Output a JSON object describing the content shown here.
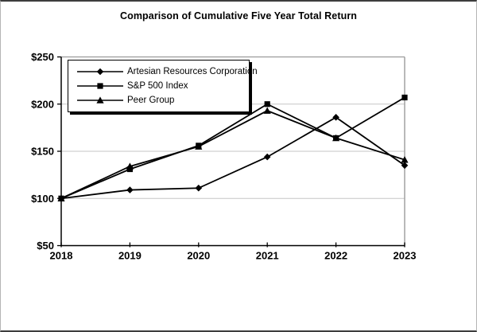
{
  "chart_data": {
    "type": "line",
    "title": "Comparison of Cumulative Five Year Total Return",
    "categories": [
      "2018",
      "2019",
      "2020",
      "2021",
      "2022",
      "2023"
    ],
    "series": [
      {
        "name": "Artesian Resources Corporation",
        "marker": "diamond",
        "color": "#000000",
        "values": [
          100,
          109,
          111,
          144,
          186,
          135
        ]
      },
      {
        "name": "S&P 500 Index",
        "marker": "square",
        "color": "#000000",
        "values": [
          100,
          131,
          156,
          200,
          164,
          207
        ]
      },
      {
        "name": "Peer Group",
        "marker": "triangle",
        "color": "#000000",
        "values": [
          100,
          134,
          155,
          193,
          164,
          141
        ]
      }
    ],
    "xlabel": "",
    "ylabel": "",
    "ylim": [
      50,
      250
    ],
    "ytick_values": [
      50,
      100,
      150,
      200,
      250
    ],
    "ytick_labels": [
      "$50",
      "$100",
      "$150",
      "$200",
      "$250"
    ],
    "grid": "horizontal",
    "legend_position": "upper-left-inside",
    "colors": {
      "line": "#000000",
      "grid": "#c6c6c6",
      "plot_border": "#9b9b9b",
      "axis": "#000000",
      "text": "#000000",
      "background": "#ffffff"
    }
  }
}
